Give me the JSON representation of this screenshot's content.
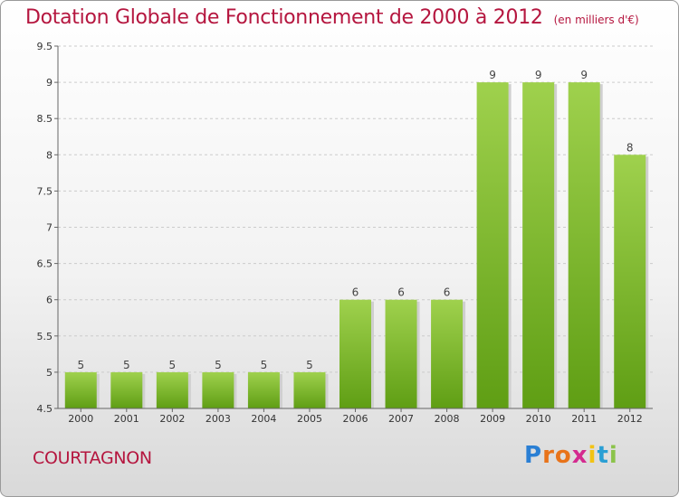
{
  "title": "Dotation Globale de Fonctionnement de 2000 à 2012",
  "unit_note": "(en milliers d'€)",
  "town": "COURTAGNON",
  "brand": "Proxiti",
  "colors": {
    "title": "#b5163f",
    "bar_top": "#9fd14d",
    "bar_bottom": "#5f9e14",
    "grid": "#cccccc"
  },
  "chart_data": {
    "type": "bar",
    "title": "Dotation Globale de Fonctionnement de 2000 à 2012",
    "subtitle": "(en milliers d'€)",
    "categories": [
      "2000",
      "2001",
      "2002",
      "2003",
      "2004",
      "2005",
      "2006",
      "2007",
      "2008",
      "2009",
      "2010",
      "2011",
      "2012"
    ],
    "values": [
      5,
      5,
      5,
      5,
      5,
      5,
      6,
      6,
      6,
      9,
      9,
      9,
      8
    ],
    "ylim": [
      4.5,
      9.5
    ],
    "yticks": [
      "4.5",
      "5",
      "5.5",
      "6",
      "6.5",
      "7",
      "7.5",
      "8",
      "8.5",
      "9",
      "9.5"
    ],
    "grid": "horizontal-dashed",
    "xlabel": "",
    "ylabel": ""
  }
}
